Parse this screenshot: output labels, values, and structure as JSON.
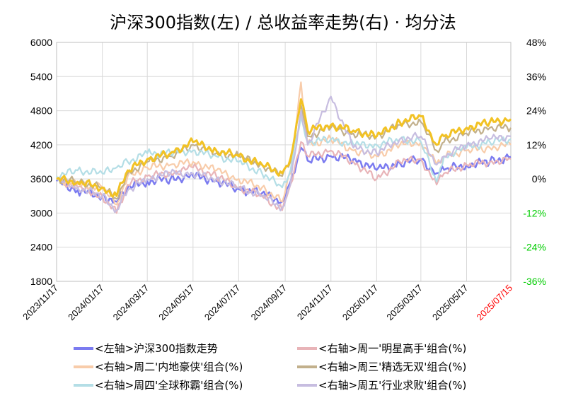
{
  "chart_data": {
    "type": "line",
    "title": "沪深300指数(左)  /  总收益率走势(右) · 均分法",
    "x_ticks": [
      "2023/11/17",
      "2024/01/17",
      "2024/03/17",
      "2024/05/17",
      "2024/07/17",
      "2024/09/17",
      "2024/11/17",
      "2025/01/17",
      "2025/03/17",
      "2025/05/17",
      "2025/07/15"
    ],
    "x_tick_colors": [
      "#000000",
      "#000000",
      "#000000",
      "#000000",
      "#000000",
      "#000000",
      "#000000",
      "#000000",
      "#000000",
      "#000000",
      "#ff0000"
    ],
    "left_axis": {
      "ylim": [
        1800,
        6000
      ],
      "ticks": [
        "6000",
        "5400",
        "4800",
        "4200",
        "3600",
        "3000",
        "2400",
        "1800"
      ]
    },
    "right_axis": {
      "ylim": [
        -36,
        48
      ],
      "ticks": [
        "48%",
        "36%",
        "24%",
        "12%",
        "0%",
        "-12%",
        "-24%",
        "-36%"
      ],
      "tick_colors": [
        "#000000",
        "#000000",
        "#000000",
        "#000000",
        "#000000",
        "#00cc00",
        "#00cc00",
        "#00cc00"
      ]
    },
    "grid": true,
    "legend": "bottom",
    "series": [
      {
        "name": "<左轴>沪深300指数走势",
        "axis": "left",
        "color": "#7b7bf0",
        "width": 2.5,
        "x": [
          "2023/11/17",
          "2023/12/15",
          "2024/01/17",
          "2024/02/05",
          "2024/02/20",
          "2024/03/17",
          "2024/04/17",
          "2024/05/17",
          "2024/06/17",
          "2024/07/17",
          "2024/08/17",
          "2024/09/13",
          "2024/09/24",
          "2024/10/08",
          "2024/10/17",
          "2024/11/17",
          "2024/12/17",
          "2025/01/17",
          "2025/02/17",
          "2025/03/17",
          "2025/04/07",
          "2025/04/17",
          "2025/05/17",
          "2025/06/17",
          "2025/07/15"
        ],
        "y": [
          3560,
          3400,
          3300,
          3200,
          3450,
          3560,
          3600,
          3650,
          3570,
          3420,
          3350,
          3200,
          3550,
          4150,
          3920,
          4000,
          3950,
          3760,
          3880,
          3940,
          3700,
          3760,
          3850,
          3900,
          3990
        ]
      },
      {
        "name": "<右轴>周一'明星高手'组合(%)",
        "axis": "right",
        "color": "#e8b4b8",
        "width": 2.2,
        "x": [
          "2023/11/17",
          "2023/12/15",
          "2024/01/17",
          "2024/02/05",
          "2024/02/20",
          "2024/03/17",
          "2024/04/17",
          "2024/05/17",
          "2024/06/17",
          "2024/07/17",
          "2024/08/17",
          "2024/09/13",
          "2024/09/24",
          "2024/10/08",
          "2024/10/17",
          "2024/11/17",
          "2024/12/17",
          "2025/01/17",
          "2025/02/17",
          "2025/03/17",
          "2025/04/07",
          "2025/04/17",
          "2025/05/17",
          "2025/06/17",
          "2025/07/15"
        ],
        "y": [
          0,
          -3,
          -6,
          -12,
          -2,
          1,
          2,
          4,
          1,
          -3,
          -6,
          -11,
          -2,
          13,
          8,
          10,
          6,
          0,
          6,
          7,
          -2,
          2,
          5,
          6,
          7
        ]
      },
      {
        "name": "<右轴>周二'内地豪侠'组合(%)",
        "axis": "right",
        "color": "#f8ccaa",
        "width": 2.2,
        "x": [
          "2023/11/17",
          "2023/12/15",
          "2024/01/17",
          "2024/02/05",
          "2024/02/20",
          "2024/03/17",
          "2024/04/17",
          "2024/05/17",
          "2024/06/17",
          "2024/07/17",
          "2024/08/17",
          "2024/09/13",
          "2024/09/24",
          "2024/10/08",
          "2024/10/17",
          "2024/11/17",
          "2024/12/17",
          "2025/01/17",
          "2025/02/17",
          "2025/03/17",
          "2025/04/07",
          "2025/04/17",
          "2025/05/17",
          "2025/06/17",
          "2025/07/15"
        ],
        "y": [
          0,
          -2,
          -3,
          -9,
          1,
          4,
          5,
          6,
          3,
          0,
          -3,
          -8,
          2,
          34,
          12,
          14,
          10,
          8,
          12,
          13,
          5,
          8,
          10,
          11,
          12
        ]
      },
      {
        "name": "<右轴>周三'精选无双'组合(%)",
        "axis": "right",
        "color": "#c2b08c",
        "width": 2.2,
        "x": [
          "2023/11/17",
          "2023/12/15",
          "2024/01/17",
          "2024/02/05",
          "2024/02/20",
          "2024/03/17",
          "2024/04/17",
          "2024/05/17",
          "2024/06/17",
          "2024/07/17",
          "2024/08/17",
          "2024/09/13",
          "2024/09/24",
          "2024/10/08",
          "2024/10/17",
          "2024/11/17",
          "2024/12/17",
          "2025/01/17",
          "2025/02/17",
          "2025/03/17",
          "2025/04/07",
          "2025/04/17",
          "2025/05/17",
          "2025/06/17",
          "2025/07/15"
        ],
        "y": [
          0,
          -1,
          -3,
          -7,
          2,
          6,
          8,
          12,
          9,
          8,
          5,
          1,
          6,
          26,
          15,
          18,
          16,
          15,
          19,
          20,
          10,
          13,
          16,
          18,
          18
        ]
      },
      {
        "name": "<右轴>周四'全球称霸'组合(%)",
        "axis": "right",
        "color": "#b4dee6",
        "width": 2.2,
        "x": [
          "2023/11/17",
          "2023/12/15",
          "2024/01/17",
          "2024/02/05",
          "2024/02/20",
          "2024/03/17",
          "2024/04/17",
          "2024/05/17",
          "2024/06/17",
          "2024/07/17",
          "2024/08/17",
          "2024/09/13",
          "2024/09/24",
          "2024/10/08",
          "2024/10/17",
          "2024/11/17",
          "2024/12/17",
          "2025/01/17",
          "2025/02/17",
          "2025/03/17",
          "2025/04/07",
          "2025/04/17",
          "2025/05/17",
          "2025/06/17",
          "2025/07/15"
        ],
        "y": [
          1,
          3,
          2,
          4,
          6,
          9,
          9,
          10,
          8,
          6,
          2,
          -3,
          3,
          22,
          13,
          14,
          12,
          12,
          14,
          13,
          -1,
          8,
          11,
          13,
          14
        ]
      },
      {
        "name": "<右轴>周五'行业求败'组合(%)",
        "axis": "right",
        "color": "#c7bde0",
        "width": 2.2,
        "x": [
          "2023/11/17",
          "2023/12/15",
          "2024/01/17",
          "2024/02/05",
          "2024/02/20",
          "2024/03/17",
          "2024/04/17",
          "2024/05/17",
          "2024/06/17",
          "2024/07/17",
          "2024/08/17",
          "2024/09/13",
          "2024/09/24",
          "2024/10/08",
          "2024/10/17",
          "2024/11/17",
          "2024/12/17",
          "2025/01/17",
          "2025/02/17",
          "2025/03/17",
          "2025/04/07",
          "2025/04/17",
          "2025/05/17",
          "2025/06/17",
          "2025/07/15"
        ],
        "y": [
          0,
          -3,
          -6,
          -11,
          -4,
          0,
          2,
          2,
          0,
          -3,
          -6,
          -10,
          -2,
          24,
          12,
          29,
          11,
          9,
          14,
          15,
          5,
          8,
          12,
          14,
          15
        ]
      },
      {
        "name": "总收益率",
        "axis": "right",
        "color": "#f2c224",
        "width": 3,
        "in_legend": false,
        "x": [
          "2023/11/17",
          "2023/12/15",
          "2024/01/17",
          "2024/02/05",
          "2024/02/20",
          "2024/03/17",
          "2024/04/17",
          "2024/05/17",
          "2024/06/17",
          "2024/07/17",
          "2024/08/17",
          "2024/09/13",
          "2024/09/24",
          "2024/10/08",
          "2024/10/17",
          "2024/11/17",
          "2024/12/17",
          "2025/01/17",
          "2025/02/17",
          "2025/03/17",
          "2025/04/07",
          "2025/04/17",
          "2025/05/17",
          "2025/06/17",
          "2025/07/15"
        ],
        "y": [
          0,
          -1,
          -3,
          -6,
          3,
          7,
          9,
          13,
          10,
          8,
          5,
          2,
          7,
          28,
          17,
          19,
          17,
          15,
          20,
          22,
          12,
          15,
          18,
          20,
          21
        ]
      }
    ]
  }
}
